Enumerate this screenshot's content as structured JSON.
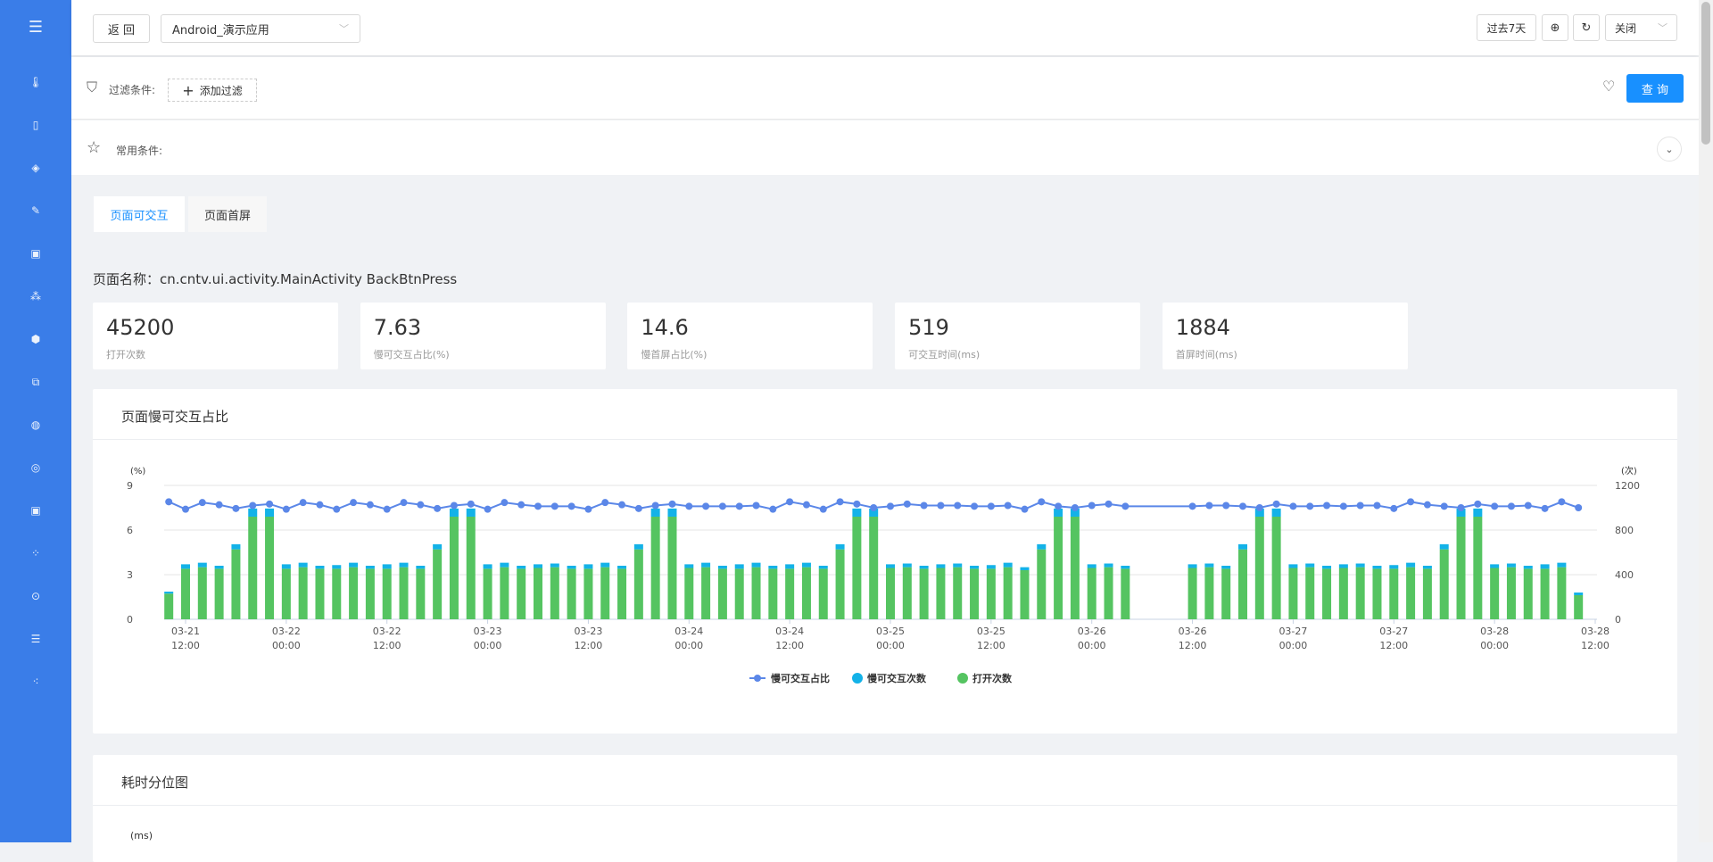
{
  "sidebar": {
    "menu_icon": "menu-fold-icon",
    "items": [
      "thermometer-icon",
      "mobile-icon",
      "shield-icon",
      "edit-icon",
      "image-icon",
      "nodes-icon",
      "settings-icon",
      "network-icon",
      "globe-icon",
      "target-icon",
      "picture-icon",
      "share-icon",
      "lock-icon",
      "list-settings-icon",
      "dots-icon"
    ]
  },
  "header": {
    "back_label": "返 回",
    "app_select": "Android_演示应用",
    "range_label": "过去7天",
    "close_select": "关闭"
  },
  "filter": {
    "label": "过滤条件:",
    "add_label": "添加过滤",
    "query_label": "查 询",
    "common_label": "常用条件:"
  },
  "tabs": [
    {
      "label": "页面可交互",
      "active": true
    },
    {
      "label": "页面首屏",
      "active": false
    }
  ],
  "page_name": "页面名称：cn.cntv.ui.activity.MainActivity BackBtnPress",
  "stats": [
    {
      "value": "45200",
      "label": "打开次数"
    },
    {
      "value": "7.63",
      "label": "慢可交互占比(%)"
    },
    {
      "value": "14.6",
      "label": "慢首屏占比(%)"
    },
    {
      "value": "519",
      "label": "可交互时间(ms)"
    },
    {
      "value": "1884",
      "label": "首屏时间(ms)"
    }
  ],
  "colors": {
    "accent": "#1890ff",
    "sidebar": "#3a7de8",
    "line": "#5b87e8",
    "slow": "#13b2e8",
    "open": "#55c461"
  },
  "chart_card": {
    "title": "页面慢可交互占比"
  },
  "chart_data": {
    "type": "bar+line",
    "left_unit": "(%)",
    "right_unit": "(次)",
    "left_ylim": [
      0,
      9
    ],
    "left_ticks": [
      "0",
      "3",
      "6",
      "9"
    ],
    "right_ylim": [
      0,
      1200
    ],
    "right_ticks": [
      "0",
      "400",
      "800",
      "1200"
    ],
    "grid": true,
    "legend": "bottom",
    "x_ticks": [
      [
        "03-21",
        "12:00"
      ],
      [
        "03-22",
        "00:00"
      ],
      [
        "03-22",
        "12:00"
      ],
      [
        "03-23",
        "00:00"
      ],
      [
        "03-23",
        "12:00"
      ],
      [
        "03-24",
        "00:00"
      ],
      [
        "03-24",
        "12:00"
      ],
      [
        "03-25",
        "00:00"
      ],
      [
        "03-25",
        "12:00"
      ],
      [
        "03-26",
        "00:00"
      ],
      [
        "03-26",
        "12:00"
      ],
      [
        "03-27",
        "00:00"
      ],
      [
        "03-27",
        "12:00"
      ],
      [
        "03-28",
        "00:00"
      ],
      [
        "03-28",
        "12:00"
      ]
    ],
    "x": [
      "03-21 10:00",
      "03-21 12:00",
      "03-21 14:00",
      "03-21 16:00",
      "03-21 18:00",
      "03-21 20:00",
      "03-21 22:00",
      "03-22 00:00",
      "03-22 02:00",
      "03-22 04:00",
      "03-22 06:00",
      "03-22 08:00",
      "03-22 10:00",
      "03-22 12:00",
      "03-22 14:00",
      "03-22 16:00",
      "03-22 18:00",
      "03-22 20:00",
      "03-22 22:00",
      "03-23 00:00",
      "03-23 02:00",
      "03-23 04:00",
      "03-23 06:00",
      "03-23 08:00",
      "03-23 10:00",
      "03-23 12:00",
      "03-23 14:00",
      "03-23 16:00",
      "03-23 18:00",
      "03-23 20:00",
      "03-23 22:00",
      "03-24 00:00",
      "03-24 02:00",
      "03-24 04:00",
      "03-24 06:00",
      "03-24 08:00",
      "03-24 10:00",
      "03-24 12:00",
      "03-24 14:00",
      "03-24 16:00",
      "03-24 18:00",
      "03-24 20:00",
      "03-24 22:00",
      "03-25 00:00",
      "03-25 02:00",
      "03-25 04:00",
      "03-25 06:00",
      "03-25 08:00",
      "03-25 10:00",
      "03-25 12:00",
      "03-25 14:00",
      "03-25 16:00",
      "03-25 18:00",
      "03-25 20:00",
      "03-25 22:00",
      "03-26 00:00",
      "03-26 02:00",
      "03-26 04:00",
      "03-26 12:00",
      "03-26 14:00",
      "03-26 16:00",
      "03-26 18:00",
      "03-26 20:00",
      "03-26 22:00",
      "03-27 00:00",
      "03-27 02:00",
      "03-27 04:00",
      "03-27 06:00",
      "03-27 08:00",
      "03-27 10:00",
      "03-27 12:00",
      "03-27 14:00",
      "03-27 16:00",
      "03-27 18:00",
      "03-27 20:00",
      "03-27 22:00",
      "03-28 00:00",
      "03-28 02:00",
      "03-28 04:00",
      "03-28 06:00",
      "03-28 08:00",
      "03-28 10:00"
    ],
    "series": [
      {
        "name": "慢可交互占比",
        "type": "line",
        "axis": "left",
        "values": [
          7.9,
          7.4,
          7.85,
          7.7,
          7.45,
          7.65,
          7.75,
          7.4,
          7.85,
          7.7,
          7.4,
          7.85,
          7.7,
          7.4,
          7.85,
          7.7,
          7.45,
          7.65,
          7.75,
          7.4,
          7.85,
          7.7,
          7.6,
          7.6,
          7.6,
          7.4,
          7.85,
          7.7,
          7.45,
          7.65,
          7.75,
          7.6,
          7.6,
          7.6,
          7.6,
          7.65,
          7.4,
          7.9,
          7.7,
          7.4,
          7.9,
          7.75,
          7.5,
          7.6,
          7.75,
          7.65,
          7.65,
          7.65,
          7.6,
          7.6,
          7.65,
          7.4,
          7.9,
          7.6,
          7.5,
          7.65,
          7.75,
          7.6,
          7.6,
          7.65,
          7.65,
          7.6,
          7.5,
          7.75,
          7.6,
          7.6,
          7.65,
          7.6,
          7.65,
          7.65,
          7.45,
          7.9,
          7.7,
          7.6,
          7.5,
          7.75,
          7.6,
          7.6,
          7.65,
          7.45,
          7.9,
          7.5
        ]
      },
      {
        "name": "慢可交互次数",
        "type": "bar",
        "axis": "right",
        "stack": true,
        "values": [
          18,
          40,
          40,
          27,
          46,
          73,
          73,
          40,
          40,
          27,
          33,
          40,
          27,
          40,
          40,
          27,
          46,
          73,
          73,
          40,
          40,
          27,
          33,
          33,
          27,
          40,
          40,
          27,
          46,
          73,
          73,
          33,
          40,
          27,
          40,
          40,
          27,
          40,
          40,
          27,
          46,
          73,
          73,
          33,
          33,
          27,
          33,
          33,
          27,
          33,
          40,
          27,
          46,
          73,
          73,
          33,
          33,
          27,
          33,
          33,
          27,
          46,
          73,
          73,
          33,
          33,
          27,
          33,
          33,
          27,
          33,
          40,
          27,
          46,
          73,
          73,
          33,
          33,
          27,
          40,
          40,
          24
        ]
      },
      {
        "name": "打开次数",
        "type": "bar",
        "axis": "right",
        "stack": true,
        "values": [
          230,
          453,
          467,
          453,
          627,
          920,
          920,
          453,
          467,
          453,
          453,
          467,
          453,
          453,
          467,
          453,
          627,
          920,
          920,
          453,
          467,
          453,
          460,
          467,
          453,
          453,
          467,
          453,
          627,
          920,
          920,
          460,
          467,
          453,
          453,
          467,
          453,
          453,
          467,
          453,
          627,
          920,
          920,
          460,
          467,
          453,
          460,
          467,
          453,
          453,
          467,
          440,
          627,
          920,
          920,
          460,
          467,
          453,
          460,
          467,
          453,
          627,
          920,
          920,
          460,
          467,
          453,
          460,
          467,
          453,
          453,
          467,
          453,
          627,
          920,
          920,
          460,
          467,
          453,
          453,
          467,
          216
        ]
      }
    ]
  },
  "percentile_card": {
    "title": "耗时分位图",
    "unit": "(ms)"
  }
}
